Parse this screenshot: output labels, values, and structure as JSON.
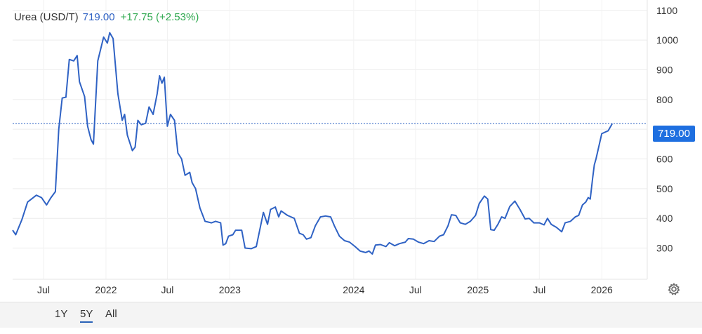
{
  "header": {
    "name": "Urea (USD/T)",
    "price": "719.00",
    "change": "+17.75 (+2.53%)"
  },
  "price_tag": "719.00",
  "range_buttons": [
    {
      "label": "1Y",
      "active": false
    },
    {
      "label": "5Y",
      "active": true
    },
    {
      "label": "All",
      "active": false
    }
  ],
  "icons": {
    "settings": "gear-icon"
  },
  "colors": {
    "line": "#2f62c4",
    "tag": "#1e6fe0",
    "change": "#2fa84f",
    "price": "#2f62c4"
  },
  "chart_data": {
    "type": "line",
    "y_ticks": [
      300,
      400,
      500,
      600,
      700,
      800,
      900,
      1000,
      1100
    ],
    "y_tick_labels": [
      "300",
      "400",
      "500",
      "600",
      "",
      "800",
      "900",
      "1000",
      "1100"
    ],
    "ylim": [
      195,
      1135
    ],
    "x_ticks": [
      {
        "label": "Jul",
        "date": "2021-07-01"
      },
      {
        "label": "2022",
        "date": "2022-01-01"
      },
      {
        "label": "Jul",
        "date": "2022-07-01"
      },
      {
        "label": "2023",
        "date": "2023-01-01"
      },
      {
        "label": "2024",
        "date": "2024-01-01"
      },
      {
        "label": "Jul",
        "date": "2024-07-01"
      },
      {
        "label": "2025",
        "date": "2025-01-01"
      },
      {
        "label": "Jul",
        "date": "2025-07-01"
      },
      {
        "label": "2026",
        "date": "2026-01-01"
      }
    ],
    "xlim": [
      "2021-04-01",
      "2026-05-15"
    ],
    "last_value": 719.0,
    "grid": true,
    "series": [
      {
        "values": [
          [
            "2021-04-01",
            360
          ],
          [
            "2021-04-10",
            345
          ],
          [
            "2021-04-28",
            395
          ],
          [
            "2021-05-15",
            455
          ],
          [
            "2021-06-01",
            470
          ],
          [
            "2021-06-10",
            478
          ],
          [
            "2021-06-25",
            470
          ],
          [
            "2021-07-10",
            445
          ],
          [
            "2021-07-22",
            468
          ],
          [
            "2021-08-05",
            490
          ],
          [
            "2021-08-15",
            700
          ],
          [
            "2021-08-25",
            805
          ],
          [
            "2021-09-05",
            808
          ],
          [
            "2021-09-15",
            935
          ],
          [
            "2021-09-28",
            930
          ],
          [
            "2021-10-08",
            948
          ],
          [
            "2021-10-15",
            860
          ],
          [
            "2021-10-30",
            810
          ],
          [
            "2021-11-08",
            710
          ],
          [
            "2021-11-18",
            665
          ],
          [
            "2021-11-25",
            650
          ],
          [
            "2021-12-08",
            930
          ],
          [
            "2021-12-25",
            1010
          ],
          [
            "2022-01-05",
            990
          ],
          [
            "2022-01-12",
            1025
          ],
          [
            "2022-01-22",
            1005
          ],
          [
            "2022-02-05",
            820
          ],
          [
            "2022-02-18",
            730
          ],
          [
            "2022-02-25",
            750
          ],
          [
            "2022-03-05",
            680
          ],
          [
            "2022-03-20",
            628
          ],
          [
            "2022-03-28",
            640
          ],
          [
            "2022-04-05",
            730
          ],
          [
            "2022-04-15",
            715
          ],
          [
            "2022-04-28",
            720
          ],
          [
            "2022-05-08",
            775
          ],
          [
            "2022-05-20",
            750
          ],
          [
            "2022-06-01",
            820
          ],
          [
            "2022-06-08",
            880
          ],
          [
            "2022-06-15",
            855
          ],
          [
            "2022-06-22",
            875
          ],
          [
            "2022-07-01",
            710
          ],
          [
            "2022-07-10",
            750
          ],
          [
            "2022-07-22",
            730
          ],
          [
            "2022-08-01",
            620
          ],
          [
            "2022-08-12",
            600
          ],
          [
            "2022-08-22",
            545
          ],
          [
            "2022-09-05",
            555
          ],
          [
            "2022-09-12",
            520
          ],
          [
            "2022-09-22",
            500
          ],
          [
            "2022-10-05",
            435
          ],
          [
            "2022-10-20",
            390
          ],
          [
            "2022-11-08",
            385
          ],
          [
            "2022-11-20",
            390
          ],
          [
            "2022-12-05",
            385
          ],
          [
            "2022-12-12",
            310
          ],
          [
            "2022-12-20",
            315
          ],
          [
            "2022-12-28",
            340
          ],
          [
            "2023-01-10",
            345
          ],
          [
            "2023-01-18",
            360
          ],
          [
            "2023-02-05",
            360
          ],
          [
            "2023-02-15",
            300
          ],
          [
            "2023-03-05",
            298
          ],
          [
            "2023-03-20",
            305
          ],
          [
            "2023-04-10",
            420
          ],
          [
            "2023-04-22",
            380
          ],
          [
            "2023-05-01",
            430
          ],
          [
            "2023-05-15",
            438
          ],
          [
            "2023-05-25",
            405
          ],
          [
            "2023-06-01",
            425
          ],
          [
            "2023-06-20",
            410
          ],
          [
            "2023-07-10",
            400
          ],
          [
            "2023-07-25",
            350
          ],
          [
            "2023-08-05",
            345
          ],
          [
            "2023-08-15",
            330
          ],
          [
            "2023-08-28",
            335
          ],
          [
            "2023-09-10",
            375
          ],
          [
            "2023-09-25",
            405
          ],
          [
            "2023-10-10",
            408
          ],
          [
            "2023-10-25",
            405
          ],
          [
            "2023-11-05",
            375
          ],
          [
            "2023-11-20",
            340
          ],
          [
            "2023-12-05",
            325
          ],
          [
            "2023-12-20",
            320
          ],
          [
            "2024-01-05",
            305
          ],
          [
            "2024-01-20",
            290
          ],
          [
            "2024-02-05",
            285
          ],
          [
            "2024-02-15",
            290
          ],
          [
            "2024-02-25",
            280
          ],
          [
            "2024-03-05",
            310
          ],
          [
            "2024-03-20",
            312
          ],
          [
            "2024-04-05",
            305
          ],
          [
            "2024-04-15",
            318
          ],
          [
            "2024-05-01",
            308
          ],
          [
            "2024-05-15",
            315
          ],
          [
            "2024-06-01",
            320
          ],
          [
            "2024-06-10",
            332
          ],
          [
            "2024-06-25",
            330
          ],
          [
            "2024-07-10",
            320
          ],
          [
            "2024-07-25",
            315
          ],
          [
            "2024-08-10",
            325
          ],
          [
            "2024-08-25",
            322
          ],
          [
            "2024-09-10",
            340
          ],
          [
            "2024-09-22",
            345
          ],
          [
            "2024-10-05",
            375
          ],
          [
            "2024-10-15",
            412
          ],
          [
            "2024-10-28",
            410
          ],
          [
            "2024-11-10",
            385
          ],
          [
            "2024-11-25",
            380
          ],
          [
            "2024-12-10",
            390
          ],
          [
            "2024-12-25",
            410
          ],
          [
            "2025-01-05",
            450
          ],
          [
            "2025-01-20",
            475
          ],
          [
            "2025-01-30",
            465
          ],
          [
            "2025-02-08",
            362
          ],
          [
            "2025-02-18",
            360
          ],
          [
            "2025-03-01",
            380
          ],
          [
            "2025-03-12",
            405
          ],
          [
            "2025-03-22",
            400
          ],
          [
            "2025-04-05",
            440
          ],
          [
            "2025-04-20",
            458
          ],
          [
            "2025-05-05",
            430
          ],
          [
            "2025-05-20",
            398
          ],
          [
            "2025-06-01",
            400
          ],
          [
            "2025-06-15",
            385
          ],
          [
            "2025-07-01",
            385
          ],
          [
            "2025-07-15",
            378
          ],
          [
            "2025-07-25",
            400
          ],
          [
            "2025-08-05",
            380
          ],
          [
            "2025-08-20",
            370
          ],
          [
            "2025-09-05",
            355
          ],
          [
            "2025-09-15",
            385
          ],
          [
            "2025-10-01",
            390
          ],
          [
            "2025-10-15",
            405
          ],
          [
            "2025-10-25",
            410
          ],
          [
            "2025-11-05",
            445
          ],
          [
            "2025-11-15",
            455
          ],
          [
            "2025-11-22",
            470
          ],
          [
            "2025-11-28",
            465
          ],
          [
            "2025-12-05",
            535
          ],
          [
            "2025-12-10",
            580
          ],
          [
            "2025-12-15",
            600
          ],
          [
            "2026-01-01",
            685
          ],
          [
            "2026-01-20",
            695
          ],
          [
            "2026-02-01",
            719
          ]
        ]
      }
    ]
  }
}
